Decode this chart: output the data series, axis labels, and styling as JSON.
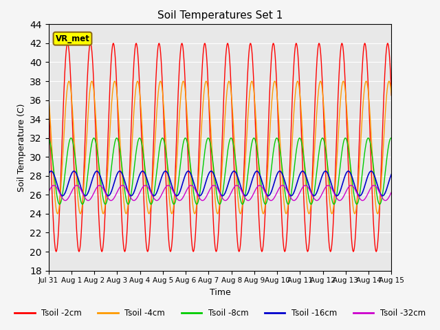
{
  "title": "Soil Temperatures Set 1",
  "xlabel": "Time",
  "ylabel": "Soil Temperature (C)",
  "ylim": [
    18,
    44
  ],
  "yticks": [
    18,
    20,
    22,
    24,
    26,
    28,
    30,
    32,
    34,
    36,
    38,
    40,
    42,
    44
  ],
  "xtick_labels": [
    "Jul 31",
    "Aug 1",
    "Aug 2",
    "Aug 3",
    "Aug 4",
    "Aug 5",
    "Aug 6",
    "Aug 7",
    "Aug 8",
    "Aug 9",
    "Aug 10",
    "Aug 11",
    "Aug 12",
    "Aug 13",
    "Aug 14",
    "Aug 15"
  ],
  "xtick_positions": [
    0,
    1,
    2,
    3,
    4,
    5,
    6,
    7,
    8,
    9,
    10,
    11,
    12,
    13,
    14,
    15
  ],
  "annotation_text": "VR_met",
  "colors": {
    "Tsoil -2cm": "#ff0000",
    "Tsoil -4cm": "#ff9900",
    "Tsoil -8cm": "#00cc00",
    "Tsoil -16cm": "#0000cc",
    "Tsoil -32cm": "#cc00cc"
  },
  "bg_color": "#e8e8e8",
  "grid_color": "#ffffff",
  "amp2": 11.0,
  "mean2": 31.0,
  "phase2": 0.0,
  "amp4": 7.0,
  "mean4": 31.0,
  "phase4": 0.06,
  "amp8": 3.5,
  "mean8": 28.5,
  "phase8": 0.15,
  "amp16": 1.3,
  "mean16": 27.2,
  "phase16": 0.28,
  "amp32": 0.8,
  "mean32": 26.2,
  "phase32": 0.4
}
